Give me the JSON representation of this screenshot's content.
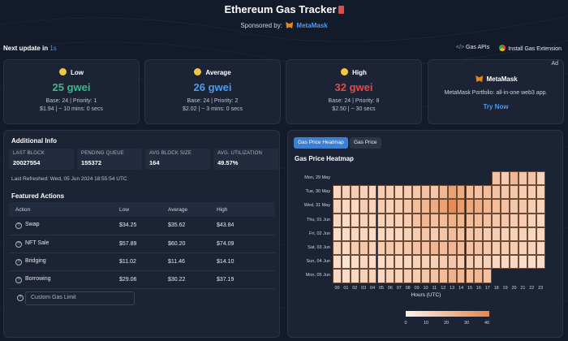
{
  "header": {
    "title": "Ethereum Gas Tracker",
    "sponsored_by": "Sponsored by:",
    "sponsor_name": "MetaMask"
  },
  "update": {
    "label": "Next update in",
    "value": "1s"
  },
  "top_links": {
    "gas_apis": "Gas APIs",
    "install": "Install Gas Extension"
  },
  "gas_cards": [
    {
      "label": "Low",
      "price": "25 gwei",
      "base_priority": "Base: 24 | Priority: 1",
      "cost_time": "$1.94 | ~ 10 mins: 0 secs",
      "color": "#3fb68b"
    },
    {
      "label": "Average",
      "price": "26 gwei",
      "base_priority": "Base: 24 | Priority: 2",
      "cost_time": "$2.02 | ~ 3 mins: 0 secs",
      "color": "#4b9cf0"
    },
    {
      "label": "High",
      "price": "32 gwei",
      "base_priority": "Base: 24 | Priority: 8",
      "cost_time": "$2.50 | ~ 30 secs",
      "color": "#e04c4c"
    }
  ],
  "ad": {
    "tag": "Ad",
    "name": "MetaMask",
    "desc": "MetaMask Portfolio: all-in-one web3 app.",
    "cta": "Try Now"
  },
  "additional_info": {
    "title": "Additional Info",
    "stats": [
      {
        "label": "LAST BLOCK",
        "value": "20027554"
      },
      {
        "label": "PENDING QUEUE",
        "value": "155372"
      },
      {
        "label": "AVG BLOCK SIZE",
        "value": "164"
      },
      {
        "label": "AVG. UTILIZATION",
        "value": "49.57%"
      }
    ],
    "refreshed": "Last Refreshed: Wed, 05 Jun 2024 18:55:54 UTC"
  },
  "featured": {
    "title": "Featured Actions",
    "columns": [
      "Action",
      "Low",
      "Average",
      "High"
    ],
    "rows": [
      {
        "action": "Swap",
        "low": "$34.25",
        "avg": "$35.62",
        "high": "$43.84"
      },
      {
        "action": "NFT Sale",
        "low": "$57.89",
        "avg": "$60.20",
        "high": "$74.09"
      },
      {
        "action": "Bridging",
        "low": "$11.02",
        "avg": "$11.46",
        "high": "$14.10"
      },
      {
        "action": "Borrowing",
        "low": "$29.06",
        "avg": "$30.22",
        "high": "$37.19"
      }
    ],
    "custom_placeholder": "Custom Gas Limit"
  },
  "tabs": {
    "heatmap": "Gas Price Heatmap",
    "gas_price": "Gas Price"
  },
  "chart_data": {
    "type": "heatmap",
    "title": "Gas Price Heatmap",
    "xlabel": "Hours (UTC)",
    "ylabel": "",
    "x": [
      "00",
      "01",
      "02",
      "03",
      "04",
      "05",
      "06",
      "07",
      "08",
      "09",
      "10",
      "11",
      "12",
      "13",
      "14",
      "15",
      "16",
      "17",
      "18",
      "19",
      "20",
      "21",
      "22",
      "23"
    ],
    "y": [
      "Mon, 29 May",
      "Tue, 30 May",
      "Wed, 31 May",
      "Thu, 01 Jun",
      "Fri, 02 Jun",
      "Sat, 03 Jun",
      "Sun, 04 Jun",
      "Mon, 05 Jun"
    ],
    "values": [
      [
        null,
        null,
        null,
        null,
        null,
        null,
        null,
        null,
        null,
        null,
        null,
        null,
        null,
        null,
        null,
        null,
        null,
        null,
        18,
        14,
        22,
        16,
        18,
        12
      ],
      [
        10,
        12,
        14,
        12,
        10,
        14,
        14,
        12,
        14,
        16,
        18,
        16,
        22,
        30,
        26,
        20,
        18,
        20,
        18,
        16,
        16,
        14,
        14,
        12
      ],
      [
        12,
        10,
        10,
        14,
        12,
        14,
        12,
        14,
        16,
        20,
        22,
        26,
        30,
        38,
        32,
        28,
        26,
        22,
        20,
        18,
        16,
        16,
        14,
        12
      ],
      [
        10,
        8,
        10,
        12,
        10,
        12,
        12,
        12,
        14,
        18,
        22,
        18,
        20,
        24,
        22,
        20,
        20,
        18,
        16,
        16,
        14,
        14,
        12,
        10
      ],
      [
        8,
        8,
        10,
        10,
        8,
        10,
        10,
        10,
        12,
        14,
        16,
        14,
        16,
        20,
        18,
        16,
        16,
        14,
        14,
        12,
        12,
        12,
        10,
        10
      ],
      [
        12,
        10,
        14,
        16,
        12,
        14,
        16,
        14,
        16,
        18,
        18,
        22,
        20,
        22,
        20,
        18,
        18,
        16,
        14,
        14,
        14,
        12,
        12,
        10
      ],
      [
        8,
        6,
        8,
        10,
        8,
        8,
        10,
        10,
        10,
        12,
        12,
        12,
        14,
        16,
        14,
        14,
        12,
        12,
        10,
        10,
        10,
        8,
        8,
        8
      ],
      [
        10,
        8,
        10,
        12,
        12,
        10,
        12,
        12,
        14,
        14,
        16,
        18,
        20,
        24,
        22,
        20,
        22,
        18,
        null,
        null,
        null,
        null,
        null,
        null
      ]
    ],
    "colorscale": {
      "min": 0,
      "max": 40,
      "ticks": [
        0,
        10,
        20,
        30,
        40
      ],
      "low_color": "#fdf3ea",
      "high_color": "#e8864a"
    }
  }
}
